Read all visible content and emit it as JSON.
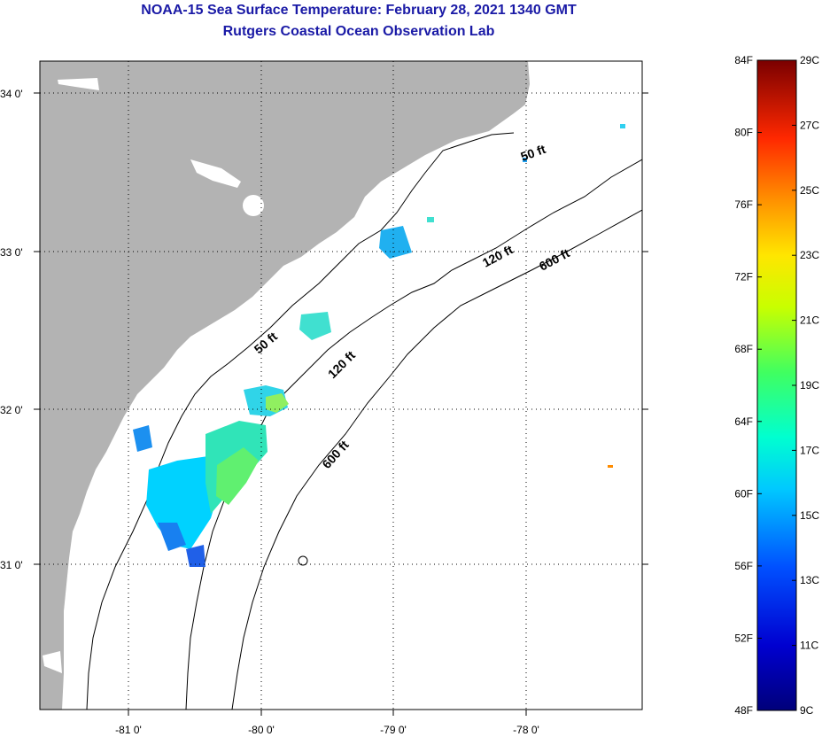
{
  "header": {
    "title": "NOAA-15 Sea Surface Temperature:  February 28, 2021 1340 GMT",
    "subtitle": "Rutgers Coastal Ocean Observation Lab"
  },
  "map": {
    "lat_ticks": [
      "34 0'",
      "33 0'",
      "32 0'",
      "31 0'"
    ],
    "lon_ticks": [
      "-81 0'",
      "-80 0'",
      "-79 0'",
      "-78 0'"
    ],
    "depth_labels": [
      "50 ft",
      "50 ft",
      "120 ft",
      "120 ft",
      "600 ft",
      "600 ft"
    ]
  },
  "colorbar": {
    "fahrenheit": [
      "84F",
      "80F",
      "76F",
      "72F",
      "68F",
      "64F",
      "60F",
      "56F",
      "52F",
      "48F"
    ],
    "celsius": [
      "29C",
      "27C",
      "25C",
      "23C",
      "21C",
      "19C",
      "17C",
      "15C",
      "13C",
      "11C",
      "9C"
    ]
  },
  "colors": {
    "title": "#1a1aa6",
    "land": "#b3b3b3",
    "ocean": "#ffffff",
    "warm": "#7a0000",
    "cold": "#00007a"
  }
}
